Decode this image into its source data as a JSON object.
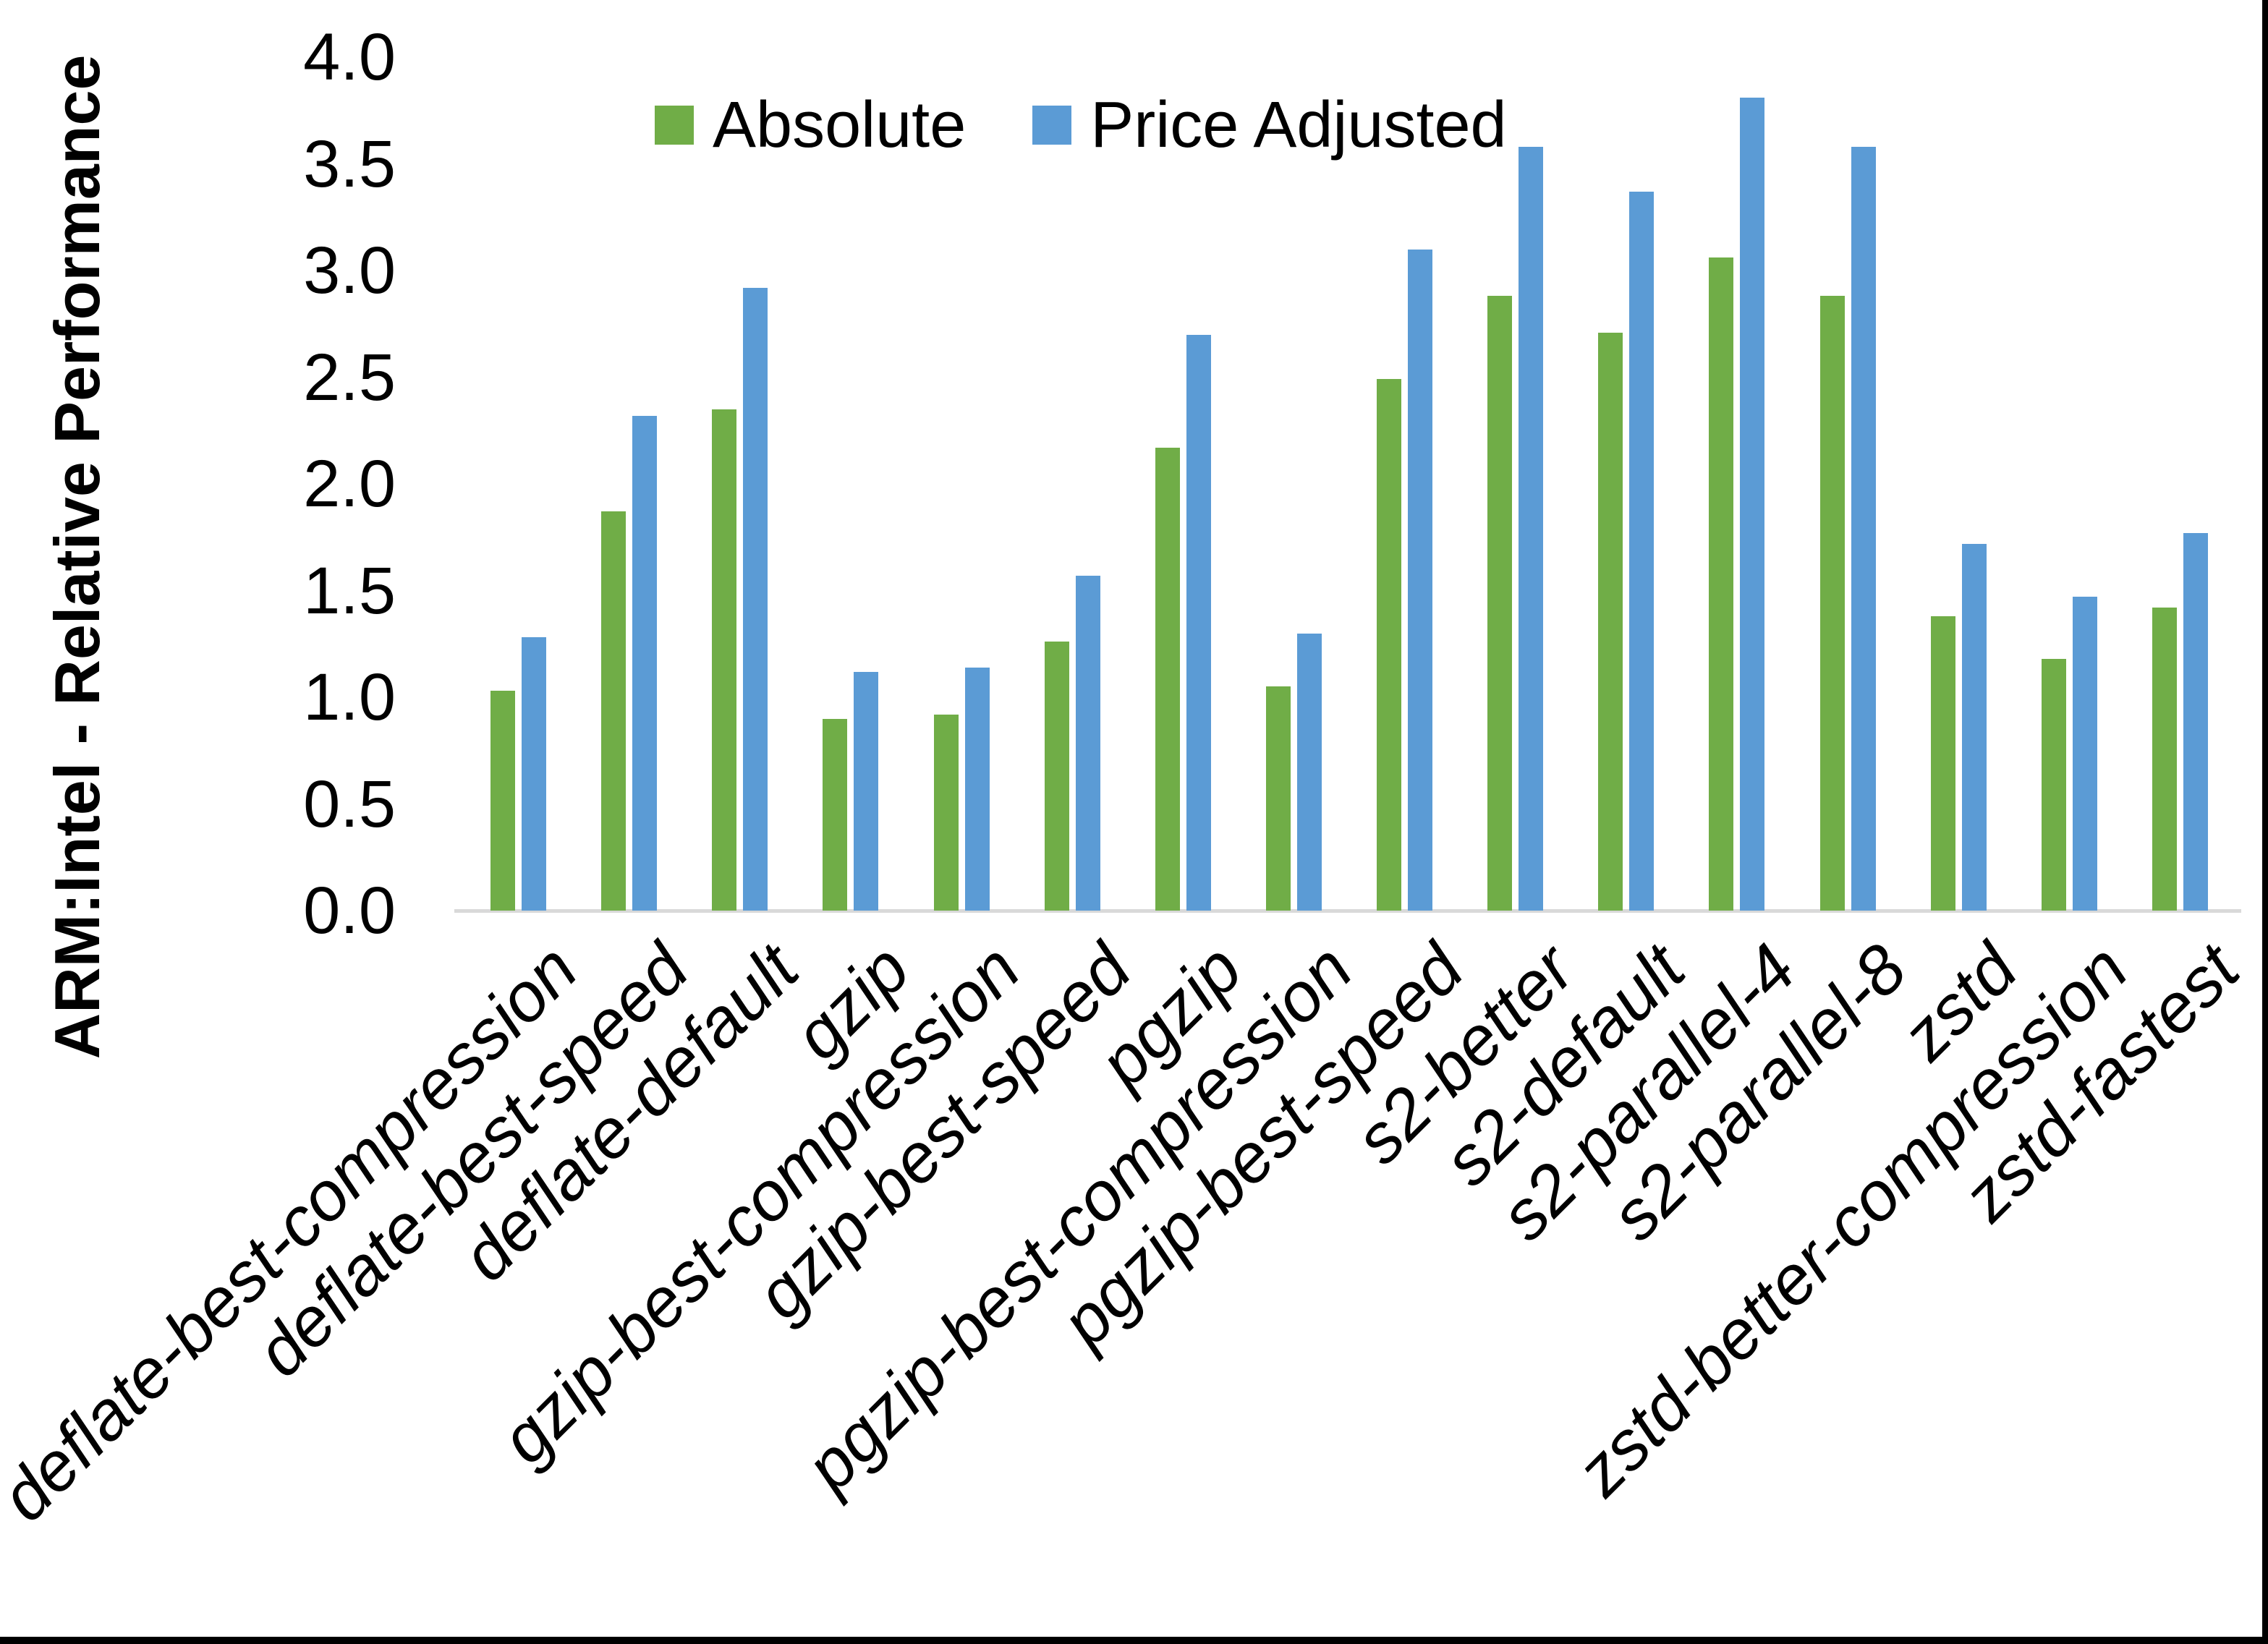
{
  "chart_data": {
    "type": "bar",
    "title": "",
    "ylabel": "ARM:Intel - Relative Performance",
    "xlabel": "",
    "ylim": [
      0.0,
      4.0
    ],
    "grid": false,
    "legend_position": "top-center",
    "background_color": "#FFFFFF",
    "axis_line_color": "#D9D9D9",
    "y_ticks": [
      {
        "label": "4.0",
        "value": 4.0
      },
      {
        "label": "3.5",
        "value": 3.5
      },
      {
        "label": "3.0",
        "value": 3.0
      },
      {
        "label": "2.5",
        "value": 2.5
      },
      {
        "label": "2.0",
        "value": 2.0
      },
      {
        "label": "1.5",
        "value": 1.5
      },
      {
        "label": "1.0",
        "value": 1.0
      },
      {
        "label": "0.5",
        "value": 0.5
      },
      {
        "label": "0.0",
        "value": 0.0
      }
    ],
    "categories": [
      "deflate-best-compression",
      "deflate-best-speed",
      "deflate-default",
      "gzip",
      "gzip-best-compression",
      "gzip-best-speed",
      "pgzip",
      "pgzip-best-compression",
      "pgzip-best-speed",
      "s2-better",
      "s2-default",
      "s2-parallel-4",
      "s2-parallel-8",
      "zstd",
      "zstd-better-compression",
      "zstd-fastest"
    ],
    "series": [
      {
        "name": "Absolute",
        "color": "#70AD47",
        "values": [
          1.03,
          1.87,
          2.35,
          0.9,
          0.92,
          1.26,
          2.17,
          1.05,
          2.49,
          2.88,
          2.71,
          3.06,
          2.88,
          1.38,
          1.18,
          1.42
        ]
      },
      {
        "name": "Price Adjusted",
        "color": "#5B9BD5",
        "values": [
          1.28,
          2.32,
          2.92,
          1.12,
          1.14,
          1.57,
          2.7,
          1.3,
          3.1,
          3.58,
          3.37,
          3.81,
          3.58,
          1.72,
          1.47,
          1.77
        ]
      }
    ]
  },
  "frame": {
    "right_border_color": "#000000",
    "bottom_border_color": "#000000"
  }
}
